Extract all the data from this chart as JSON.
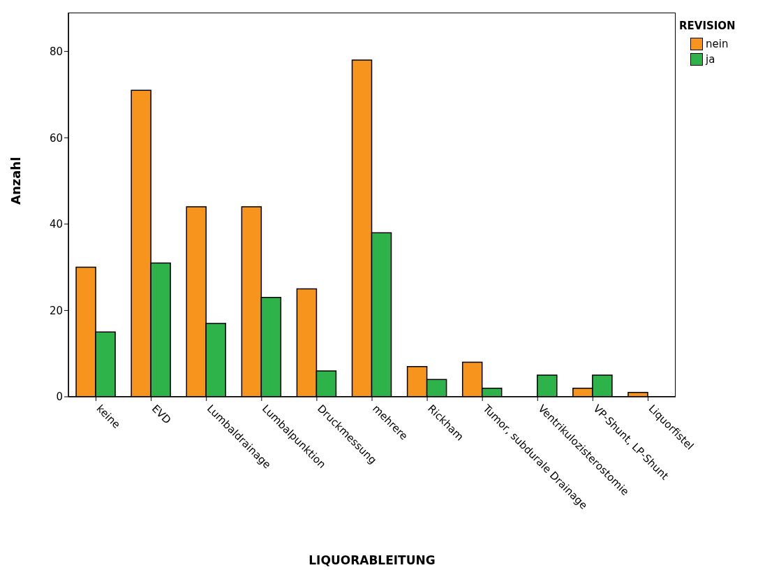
{
  "chart_data": {
    "type": "bar",
    "xlabel": "LIQUORABLEITUNG",
    "ylabel": "Anzahl",
    "legend_title": "REVISION",
    "legend": "top right",
    "categories": [
      "keine",
      "EVD",
      "Lumbaldrainage",
      "Lumbalpunktion",
      "Druckmessung",
      "mehrere",
      "Rickham",
      "Tumor, subdurale Drainage",
      "Ventrikulozisterostomie",
      "VP-Shunt, LP-Shunt",
      "Liquorfistel"
    ],
    "series": [
      {
        "name": "nein",
        "color": "#f7941d",
        "values": [
          30,
          71,
          44,
          44,
          25,
          78,
          7,
          8,
          0,
          2,
          1
        ]
      },
      {
        "name": "ja",
        "color": "#2db34a",
        "values": [
          15,
          31,
          17,
          23,
          6,
          38,
          4,
          2,
          5,
          5,
          0
        ]
      }
    ],
    "ylim": [
      0,
      89
    ],
    "yticks": [
      0,
      20,
      40,
      60,
      80
    ]
  }
}
